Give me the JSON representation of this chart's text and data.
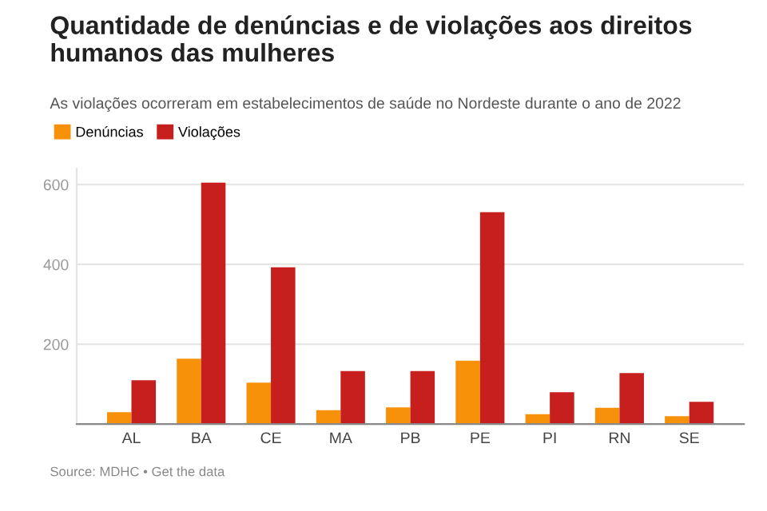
{
  "chart_data": {
    "type": "bar",
    "title": "Quantidade de denúncias e de violações aos direitos humanos das mulheres",
    "subtitle": "As violações ocorreram em estabelecimentos de saúde no Nordeste durante o ano de 2022",
    "categories": [
      "AL",
      "BA",
      "CE",
      "MA",
      "PB",
      "PE",
      "PI",
      "RN",
      "SE"
    ],
    "series": [
      {
        "name": "Denúncias",
        "color": "#f7910a",
        "values": [
          30,
          164,
          104,
          35,
          42,
          159,
          25,
          41,
          20
        ]
      },
      {
        "name": "Violações",
        "color": "#c71f1d",
        "values": [
          110,
          605,
          393,
          133,
          133,
          531,
          80,
          128,
          56
        ]
      }
    ],
    "ylim": [
      0,
      640
    ],
    "yticks": [
      200,
      400,
      600
    ],
    "grid": "y",
    "legend": "top left",
    "annotations": [
      "Source: MDHC • Get the data"
    ]
  }
}
